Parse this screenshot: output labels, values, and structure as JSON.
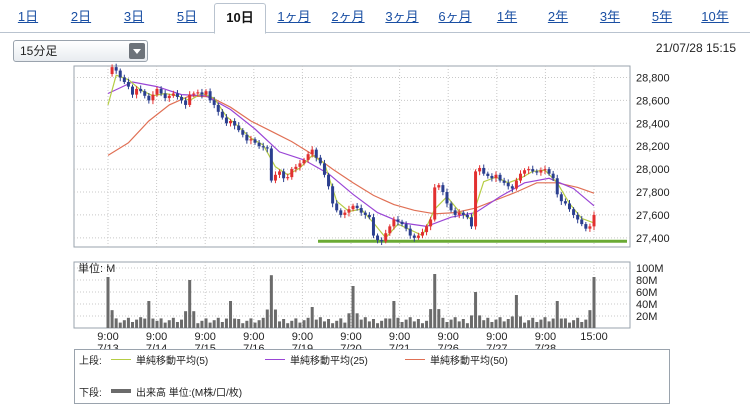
{
  "tabs": [
    "1日",
    "2日",
    "3日",
    "5日",
    "10日",
    "1ヶ月",
    "2ヶ月",
    "3ヶ月",
    "6ヶ月",
    "1年",
    "2年",
    "3年",
    "5年",
    "10年"
  ],
  "active_tab_index": 4,
  "interval_select": {
    "value": "15分足"
  },
  "timestamp": "21/07/28 15:15",
  "colors": {
    "up": "#e23030",
    "down": "#2b3f8f",
    "ma5": "#b5cd44",
    "ma25": "#9a45d6",
    "ma50": "#e07055",
    "support": "#6aaa34",
    "volume": "#6b6b6b",
    "grid": "#c8c8c8"
  },
  "legend": {
    "upper_label": "上段:",
    "lower_label": "下段:",
    "ma5": "単純移動平均(5)",
    "ma25": "単純移動平均(25)",
    "ma50": "単純移動平均(50)",
    "volume": "出来高 単位:(M株/口/枚)"
  },
  "chart_data": {
    "type": "candlestick",
    "price_axis": {
      "ticks": [
        "28,800",
        "28,600",
        "28,400",
        "28,200",
        "28,000",
        "27,800",
        "27,600",
        "27,400"
      ],
      "ylim": [
        27320,
        28900
      ]
    },
    "volume_axis": {
      "title": "単位: M",
      "ticks": [
        "100M",
        "80M",
        "60M",
        "40M",
        "20M"
      ],
      "ylim": [
        0,
        100
      ]
    },
    "x_ticks": [
      {
        "time": "9:00",
        "date": "7/13"
      },
      {
        "time": "9:00",
        "date": "7/14"
      },
      {
        "time": "9:00",
        "date": "7/15"
      },
      {
        "time": "9:00",
        "date": "7/16"
      },
      {
        "time": "9:00",
        "date": "7/19"
      },
      {
        "time": "9:00",
        "date": "7/20"
      },
      {
        "time": "9:00",
        "date": "7/21"
      },
      {
        "time": "9:00",
        "date": "7/26"
      },
      {
        "time": "9:00",
        "date": "7/27"
      },
      {
        "time": "9:00",
        "date": "7/28"
      },
      {
        "time": "15:00",
        "date": ""
      }
    ],
    "support_line": 27370,
    "price_path": [
      [
        0,
        28830
      ],
      [
        1,
        28890
      ],
      [
        2,
        28860
      ],
      [
        3,
        28800
      ],
      [
        4,
        28760
      ],
      [
        5,
        28720
      ],
      [
        6,
        28650
      ],
      [
        7,
        28700
      ],
      [
        8,
        28680
      ],
      [
        9,
        28640
      ],
      [
        10,
        28600
      ],
      [
        11,
        28650
      ],
      [
        12,
        28700
      ],
      [
        13,
        28660
      ],
      [
        14,
        28620
      ],
      [
        15,
        28640
      ],
      [
        16,
        28660
      ],
      [
        17,
        28630
      ],
      [
        18,
        28600
      ],
      [
        19,
        28560
      ],
      [
        20,
        28650
      ],
      [
        21,
        28660
      ],
      [
        22,
        28670
      ],
      [
        23,
        28650
      ],
      [
        24,
        28680
      ],
      [
        25,
        28600
      ],
      [
        26,
        28560
      ],
      [
        27,
        28500
      ],
      [
        28,
        28450
      ],
      [
        29,
        28400
      ],
      [
        30,
        28420
      ],
      [
        31,
        28380
      ],
      [
        32,
        28340
      ],
      [
        33,
        28300
      ],
      [
        34,
        28250
      ],
      [
        35,
        28260
      ],
      [
        36,
        28230
      ],
      [
        37,
        28200
      ],
      [
        38,
        28190
      ],
      [
        39,
        28180
      ],
      [
        40,
        27900
      ],
      [
        41,
        27950
      ],
      [
        42,
        27980
      ],
      [
        43,
        27920
      ],
      [
        44,
        27930
      ],
      [
        45,
        28000
      ],
      [
        46,
        28020
      ],
      [
        47,
        28050
      ],
      [
        48,
        28080
      ],
      [
        49,
        28130
      ],
      [
        50,
        28170
      ],
      [
        51,
        28100
      ],
      [
        52,
        28050
      ],
      [
        53,
        27950
      ],
      [
        54,
        27850
      ],
      [
        55,
        27700
      ],
      [
        56,
        27640
      ],
      [
        57,
        27600
      ],
      [
        58,
        27620
      ],
      [
        59,
        27650
      ],
      [
        60,
        27680
      ],
      [
        61,
        27660
      ],
      [
        62,
        27620
      ],
      [
        63,
        27600
      ],
      [
        64,
        27580
      ],
      [
        65,
        27420
      ],
      [
        66,
        27380
      ],
      [
        67,
        27370
      ],
      [
        68,
        27440
      ],
      [
        69,
        27500
      ],
      [
        70,
        27560
      ],
      [
        71,
        27540
      ],
      [
        72,
        27520
      ],
      [
        73,
        27480
      ],
      [
        74,
        27420
      ],
      [
        75,
        27400
      ],
      [
        76,
        27420
      ],
      [
        77,
        27450
      ],
      [
        78,
        27500
      ],
      [
        79,
        27560
      ],
      [
        80,
        27840
      ],
      [
        81,
        27860
      ],
      [
        82,
        27800
      ],
      [
        83,
        27700
      ],
      [
        84,
        27640
      ],
      [
        85,
        27600
      ],
      [
        86,
        27620
      ],
      [
        87,
        27600
      ],
      [
        88,
        27580
      ],
      [
        89,
        27500
      ],
      [
        90,
        27980
      ],
      [
        91,
        28010
      ],
      [
        92,
        27960
      ],
      [
        93,
        27940
      ],
      [
        94,
        27920
      ],
      [
        95,
        27950
      ],
      [
        96,
        27900
      ],
      [
        97,
        27880
      ],
      [
        98,
        27850
      ],
      [
        99,
        27830
      ],
      [
        100,
        27900
      ],
      [
        101,
        27960
      ],
      [
        102,
        27990
      ],
      [
        103,
        28000
      ],
      [
        104,
        27980
      ],
      [
        105,
        27970
      ],
      [
        106,
        27990
      ],
      [
        107,
        28000
      ],
      [
        108,
        27960
      ],
      [
        109,
        27920
      ],
      [
        110,
        27780
      ],
      [
        111,
        27720
      ],
      [
        112,
        27700
      ],
      [
        113,
        27650
      ],
      [
        114,
        27600
      ],
      [
        115,
        27560
      ],
      [
        116,
        27520
      ],
      [
        117,
        27480
      ],
      [
        118,
        27500
      ],
      [
        119,
        27600
      ]
    ],
    "ma5": [
      [
        0,
        28560
      ],
      [
        2,
        28820
      ],
      [
        5,
        28780
      ],
      [
        8,
        28690
      ],
      [
        11,
        28640
      ],
      [
        14,
        28660
      ],
      [
        17,
        28640
      ],
      [
        20,
        28600
      ],
      [
        23,
        28660
      ],
      [
        26,
        28620
      ],
      [
        29,
        28460
      ],
      [
        32,
        28370
      ],
      [
        35,
        28270
      ],
      [
        38,
        28210
      ],
      [
        41,
        28020
      ],
      [
        44,
        27950
      ],
      [
        47,
        28010
      ],
      [
        50,
        28120
      ],
      [
        53,
        28050
      ],
      [
        56,
        27720
      ],
      [
        59,
        27630
      ],
      [
        62,
        27650
      ],
      [
        65,
        27530
      ],
      [
        68,
        27400
      ],
      [
        71,
        27520
      ],
      [
        74,
        27470
      ],
      [
        77,
        27420
      ],
      [
        80,
        27650
      ],
      [
        83,
        27760
      ],
      [
        86,
        27630
      ],
      [
        89,
        27560
      ],
      [
        92,
        27890
      ],
      [
        95,
        27930
      ],
      [
        98,
        27880
      ],
      [
        101,
        27920
      ],
      [
        104,
        27980
      ],
      [
        107,
        27990
      ],
      [
        110,
        27880
      ],
      [
        113,
        27700
      ],
      [
        116,
        27570
      ],
      [
        119,
        27530
      ]
    ],
    "ma25": [
      [
        0,
        28660
      ],
      [
        6,
        28760
      ],
      [
        12,
        28720
      ],
      [
        18,
        28650
      ],
      [
        24,
        28640
      ],
      [
        30,
        28520
      ],
      [
        36,
        28350
      ],
      [
        42,
        28150
      ],
      [
        48,
        28080
      ],
      [
        54,
        27960
      ],
      [
        60,
        27780
      ],
      [
        66,
        27620
      ],
      [
        72,
        27530
      ],
      [
        78,
        27500
      ],
      [
        84,
        27580
      ],
      [
        90,
        27620
      ],
      [
        96,
        27760
      ],
      [
        102,
        27880
      ],
      [
        108,
        27920
      ],
      [
        114,
        27830
      ],
      [
        119,
        27680
      ]
    ],
    "ma50": [
      [
        0,
        28120
      ],
      [
        5,
        28230
      ],
      [
        10,
        28420
      ],
      [
        15,
        28560
      ],
      [
        20,
        28640
      ],
      [
        25,
        28630
      ],
      [
        30,
        28540
      ],
      [
        35,
        28420
      ],
      [
        40,
        28330
      ],
      [
        45,
        28240
      ],
      [
        50,
        28130
      ],
      [
        55,
        28000
      ],
      [
        60,
        27880
      ],
      [
        65,
        27770
      ],
      [
        70,
        27690
      ],
      [
        75,
        27640
      ],
      [
        80,
        27610
      ],
      [
        85,
        27620
      ],
      [
        90,
        27660
      ],
      [
        95,
        27730
      ],
      [
        100,
        27800
      ],
      [
        105,
        27880
      ],
      [
        110,
        27880
      ],
      [
        115,
        27840
      ],
      [
        119,
        27790
      ]
    ],
    "volume_spikes": [
      {
        "x": 0,
        "value": 85
      },
      {
        "x": 10,
        "value": 45
      },
      {
        "x": 20,
        "value": 80
      },
      {
        "x": 30,
        "value": 45
      },
      {
        "x": 40,
        "value": 88
      },
      {
        "x": 50,
        "value": 35
      },
      {
        "x": 60,
        "value": 70
      },
      {
        "x": 70,
        "value": 45
      },
      {
        "x": 80,
        "value": 90
      },
      {
        "x": 90,
        "value": 60
      },
      {
        "x": 100,
        "value": 55
      },
      {
        "x": 110,
        "value": 45
      },
      {
        "x": 119,
        "value": 85
      }
    ]
  }
}
